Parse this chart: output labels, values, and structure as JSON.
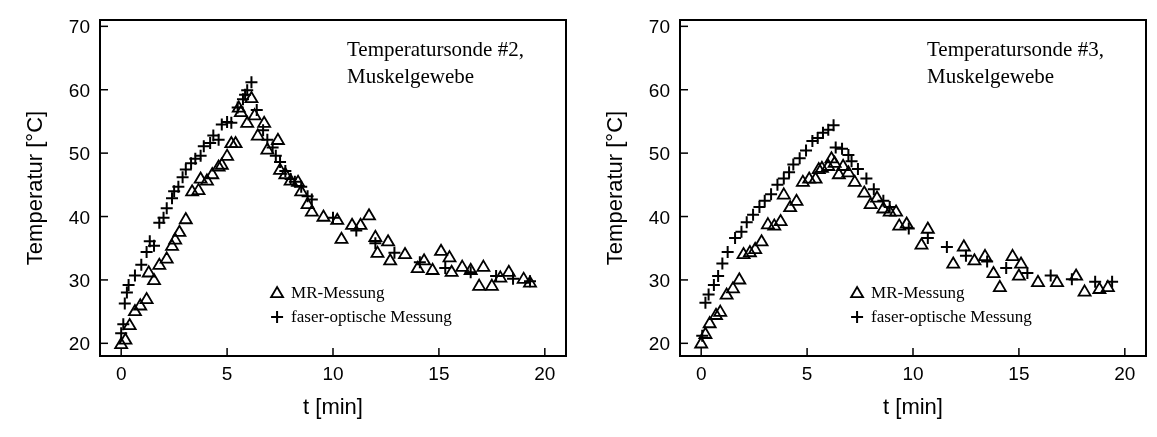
{
  "chart_data": [
    {
      "type": "scatter",
      "annotations": [
        "Temperatursonde #2, Muskelgewebe"
      ],
      "xlabel": "t [min]",
      "ylabel": "Temperatur [°C]",
      "xlim": [
        -1,
        21
      ],
      "ylim": [
        18,
        71
      ],
      "xticks": [
        0,
        5,
        10,
        15,
        20
      ],
      "yticks": [
        20,
        30,
        40,
        50,
        60,
        70
      ],
      "grid": false,
      "legend": "bottom",
      "series": [
        {
          "name": "MR-Messung",
          "color": "#000000",
          "marker": "triangle",
          "x": [
            0,
            0.2,
            0.4,
            0.65,
            0.9,
            1.2,
            1.3,
            1.55,
            1.8,
            2.15,
            2.4,
            2.55,
            2.75,
            3.05,
            3.35,
            3.65,
            3.75,
            4.05,
            4.3,
            4.6,
            4.75,
            5.0,
            5.2,
            5.4,
            5.55,
            5.65,
            6.15,
            5.95,
            6.3,
            6.45,
            6.75,
            6.9,
            7.4,
            7.5,
            7.75,
            8,
            8.35,
            8.5,
            8.8,
            9.0,
            9.55,
            10.2,
            10.4,
            10.9,
            11.3,
            11.7,
            12,
            12.1,
            12.6,
            12.7,
            13.4,
            14,
            14.3,
            14.7,
            15.1,
            15.5,
            15.6,
            16.1,
            16.5,
            16.9,
            17.1,
            17.5,
            17.9,
            18.3,
            19,
            19.3
          ],
          "values": [
            19.9,
            20.6,
            22.9,
            25.1,
            26,
            27,
            31.2,
            30,
            32.4,
            33.4,
            35.4,
            36.4,
            37.6,
            39.6,
            44,
            44.2,
            46,
            45.7,
            46.7,
            47.9,
            48.2,
            49.6,
            51.6,
            51.6,
            57.2,
            56.5,
            58.7,
            54.8,
            56,
            52.8,
            54.8,
            50.6,
            52.1,
            47.4,
            46.7,
            45.7,
            45.5,
            44,
            42,
            40.8,
            40,
            39.5,
            36.5,
            38.7,
            38.7,
            40.2,
            36.8,
            34.3,
            36.1,
            33.1,
            34.1,
            31.9,
            33.1,
            31.6,
            34.6,
            33.6,
            31.3,
            32.1,
            31.6,
            29.1,
            32.1,
            29.1,
            30.4,
            31.3,
            30.2,
            29.6
          ]
        },
        {
          "name": "faser-optische Messung",
          "color": "#000000",
          "marker": "cross",
          "x": [
            0,
            0.1,
            0.17,
            0.27,
            0.35,
            0.65,
            0.95,
            1.2,
            1.35,
            1.55,
            1.8,
            2.0,
            2.15,
            2.4,
            2.5,
            2.7,
            2.9,
            3.05,
            3.3,
            3.5,
            3.75,
            3.9,
            4.2,
            4.35,
            4.6,
            4.75,
            5.0,
            5.2,
            5.5,
            5.75,
            5.85,
            5.95,
            6.15,
            6.4,
            6.7,
            6.9,
            7.15,
            7.3,
            7.5,
            7.75,
            8.0,
            8.2,
            8.5,
            8.8,
            9,
            10,
            11.1,
            12,
            12.9,
            14.1,
            15.3,
            16.5,
            17.7,
            18.5,
            19.3
          ],
          "values": [
            21.6,
            23,
            26.3,
            28,
            29.2,
            30.7,
            32.4,
            34.4,
            36.1,
            35.4,
            39,
            39.8,
            41.3,
            42.9,
            44,
            44.7,
            46.2,
            47.4,
            48.4,
            49.1,
            49.6,
            51.1,
            51.6,
            52.8,
            52.1,
            54.5,
            54.9,
            54.8,
            57.2,
            58.5,
            59.2,
            59.9,
            61.2,
            56.8,
            53.6,
            52.1,
            50.9,
            49.6,
            48.6,
            47.2,
            45.9,
            45.5,
            44.7,
            43.2,
            42.7,
            39.8,
            37.8,
            35.8,
            34.3,
            32.8,
            31.9,
            31.2,
            30.6,
            30.2,
            29.8
          ]
        }
      ]
    },
    {
      "type": "scatter",
      "annotations": [
        "Temperatursonde #3, Muskelgewebe"
      ],
      "xlabel": "t [min]",
      "ylabel": "Temperatur [°C]",
      "xlim": [
        -1,
        21
      ],
      "ylim": [
        18,
        71
      ],
      "xticks": [
        0,
        5,
        10,
        15,
        20
      ],
      "yticks": [
        20,
        30,
        40,
        50,
        60,
        70
      ],
      "grid": false,
      "legend": "bottom",
      "series": [
        {
          "name": "MR-Messung",
          "color": "#000000",
          "marker": "triangle",
          "x": [
            0,
            0.2,
            0.4,
            0.7,
            0.9,
            1.2,
            1.5,
            1.8,
            2.0,
            2.3,
            2.55,
            2.85,
            3.15,
            3.45,
            3.75,
            3.9,
            4.2,
            4.5,
            4.8,
            5.1,
            5.4,
            5.55,
            5.7,
            6.0,
            6.15,
            6.3,
            6.5,
            6.7,
            6.95,
            7.25,
            7.7,
            8,
            8.3,
            8.6,
            8.9,
            9.2,
            9.35,
            9.7,
            10.4,
            10.7,
            11.9,
            12.4,
            12.9,
            13.4,
            13.8,
            14.1,
            14.7,
            15.1,
            15,
            15.9,
            16.8,
            17.7,
            18.1,
            18.8,
            19.2
          ],
          "values": [
            20,
            21.5,
            23.2,
            24.5,
            25,
            27.7,
            28.7,
            30.1,
            34.1,
            34.4,
            34.9,
            36.1,
            38.8,
            38.6,
            39.3,
            43.5,
            41.5,
            42.5,
            45.5,
            46,
            46,
            47.5,
            47.7,
            48,
            49.2,
            48.5,
            46.7,
            48,
            47,
            45.5,
            43.8,
            42,
            43,
            41.3,
            40.8,
            40.8,
            38.6,
            38.9,
            35.6,
            38.1,
            32.6,
            35.3,
            33.1,
            33.8,
            31.1,
            28.9,
            33.8,
            32.6,
            30.7,
            29.7,
            29.7,
            30.7,
            28.2,
            28.6,
            28.9
          ]
        },
        {
          "name": "faser-optische Messung",
          "color": "#000000",
          "marker": "cross",
          "x": [
            0.05,
            0.2,
            0.35,
            0.6,
            0.8,
            1.0,
            1.25,
            1.6,
            1.9,
            2.15,
            2.45,
            2.75,
            3.0,
            3.3,
            3.6,
            3.9,
            4.15,
            4.35,
            4.65,
            4.95,
            5.25,
            5.5,
            5.75,
            6.0,
            6.25,
            6.35,
            6.65,
            6.95,
            7.1,
            7.4,
            7.8,
            8.15,
            8.6,
            8.9,
            9.8,
            10.7,
            11.6,
            12.5,
            13.5,
            14.4,
            15.4,
            16.5,
            17.5,
            18.6,
            19.4
          ],
          "values": [
            21.2,
            26.4,
            27.7,
            29.2,
            30.6,
            32.6,
            34.4,
            36.6,
            37.6,
            39.1,
            40.3,
            41.5,
            42.5,
            43.5,
            45,
            46,
            47,
            48.2,
            49.2,
            50.4,
            51.9,
            52.4,
            53.2,
            53.7,
            54.4,
            50.9,
            50.7,
            49.7,
            48.7,
            47.5,
            46,
            44.3,
            42.5,
            41.5,
            38.1,
            36.6,
            35.2,
            33.8,
            32.9,
            31.9,
            31.1,
            30.7,
            30.1,
            29.7,
            29.7
          ]
        }
      ]
    }
  ]
}
